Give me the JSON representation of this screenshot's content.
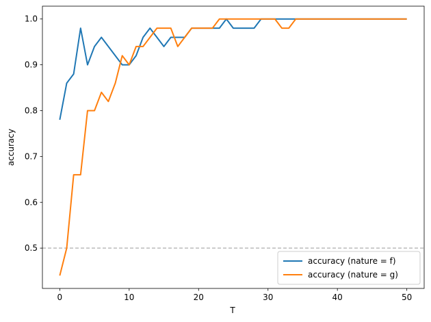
{
  "chart_data": {
    "type": "line",
    "xlabel": "T",
    "ylabel": "accuracy",
    "x": [
      0,
      1,
      2,
      3,
      4,
      5,
      6,
      7,
      8,
      9,
      10,
      11,
      12,
      13,
      14,
      15,
      16,
      17,
      18,
      19,
      20,
      21,
      22,
      23,
      24,
      25,
      26,
      27,
      28,
      29,
      30,
      31,
      32,
      33,
      34,
      35,
      36,
      37,
      38,
      39,
      40,
      41,
      42,
      43,
      44,
      45,
      46,
      47,
      48,
      49,
      50
    ],
    "series": [
      {
        "name": "accuracy (nature = f)",
        "color": "#1f77b4",
        "values": [
          0.78,
          0.86,
          0.88,
          0.98,
          0.9,
          0.94,
          0.96,
          0.94,
          0.92,
          0.9,
          0.9,
          0.92,
          0.96,
          0.98,
          0.96,
          0.94,
          0.96,
          0.96,
          0.96,
          0.98,
          0.98,
          0.98,
          0.98,
          0.98,
          1,
          0.98,
          0.98,
          0.98,
          0.98,
          1,
          1,
          1,
          1,
          1,
          1,
          1,
          1,
          1,
          1,
          1,
          1,
          1,
          1,
          1,
          1,
          1,
          1,
          1,
          1,
          1,
          1
        ]
      },
      {
        "name": "accuracy (nature = g)",
        "color": "#ff7f0e",
        "values": [
          0.44,
          0.5,
          0.66,
          0.66,
          0.8,
          0.8,
          0.84,
          0.82,
          0.86,
          0.92,
          0.9,
          0.94,
          0.94,
          0.96,
          0.98,
          0.98,
          0.98,
          0.94,
          0.96,
          0.98,
          0.98,
          0.98,
          0.98,
          1,
          1,
          1,
          1,
          1,
          1,
          1,
          1,
          1,
          0.98,
          0.98,
          1,
          1,
          1,
          1,
          1,
          1,
          1,
          1,
          1,
          1,
          1,
          1,
          1,
          1,
          1,
          1,
          1
        ]
      }
    ],
    "hline": 0.5,
    "xlim": [
      -2.5,
      52.5
    ],
    "xticks": [
      0,
      10,
      20,
      30,
      40,
      50
    ],
    "ylim": [
      0.412,
      1.028
    ],
    "yticks": [
      0.5,
      0.6,
      0.7,
      0.8,
      0.9,
      {
        "value": 1,
        "label": "1.0"
      }
    ],
    "legend": "lower right",
    "grid": false
  }
}
